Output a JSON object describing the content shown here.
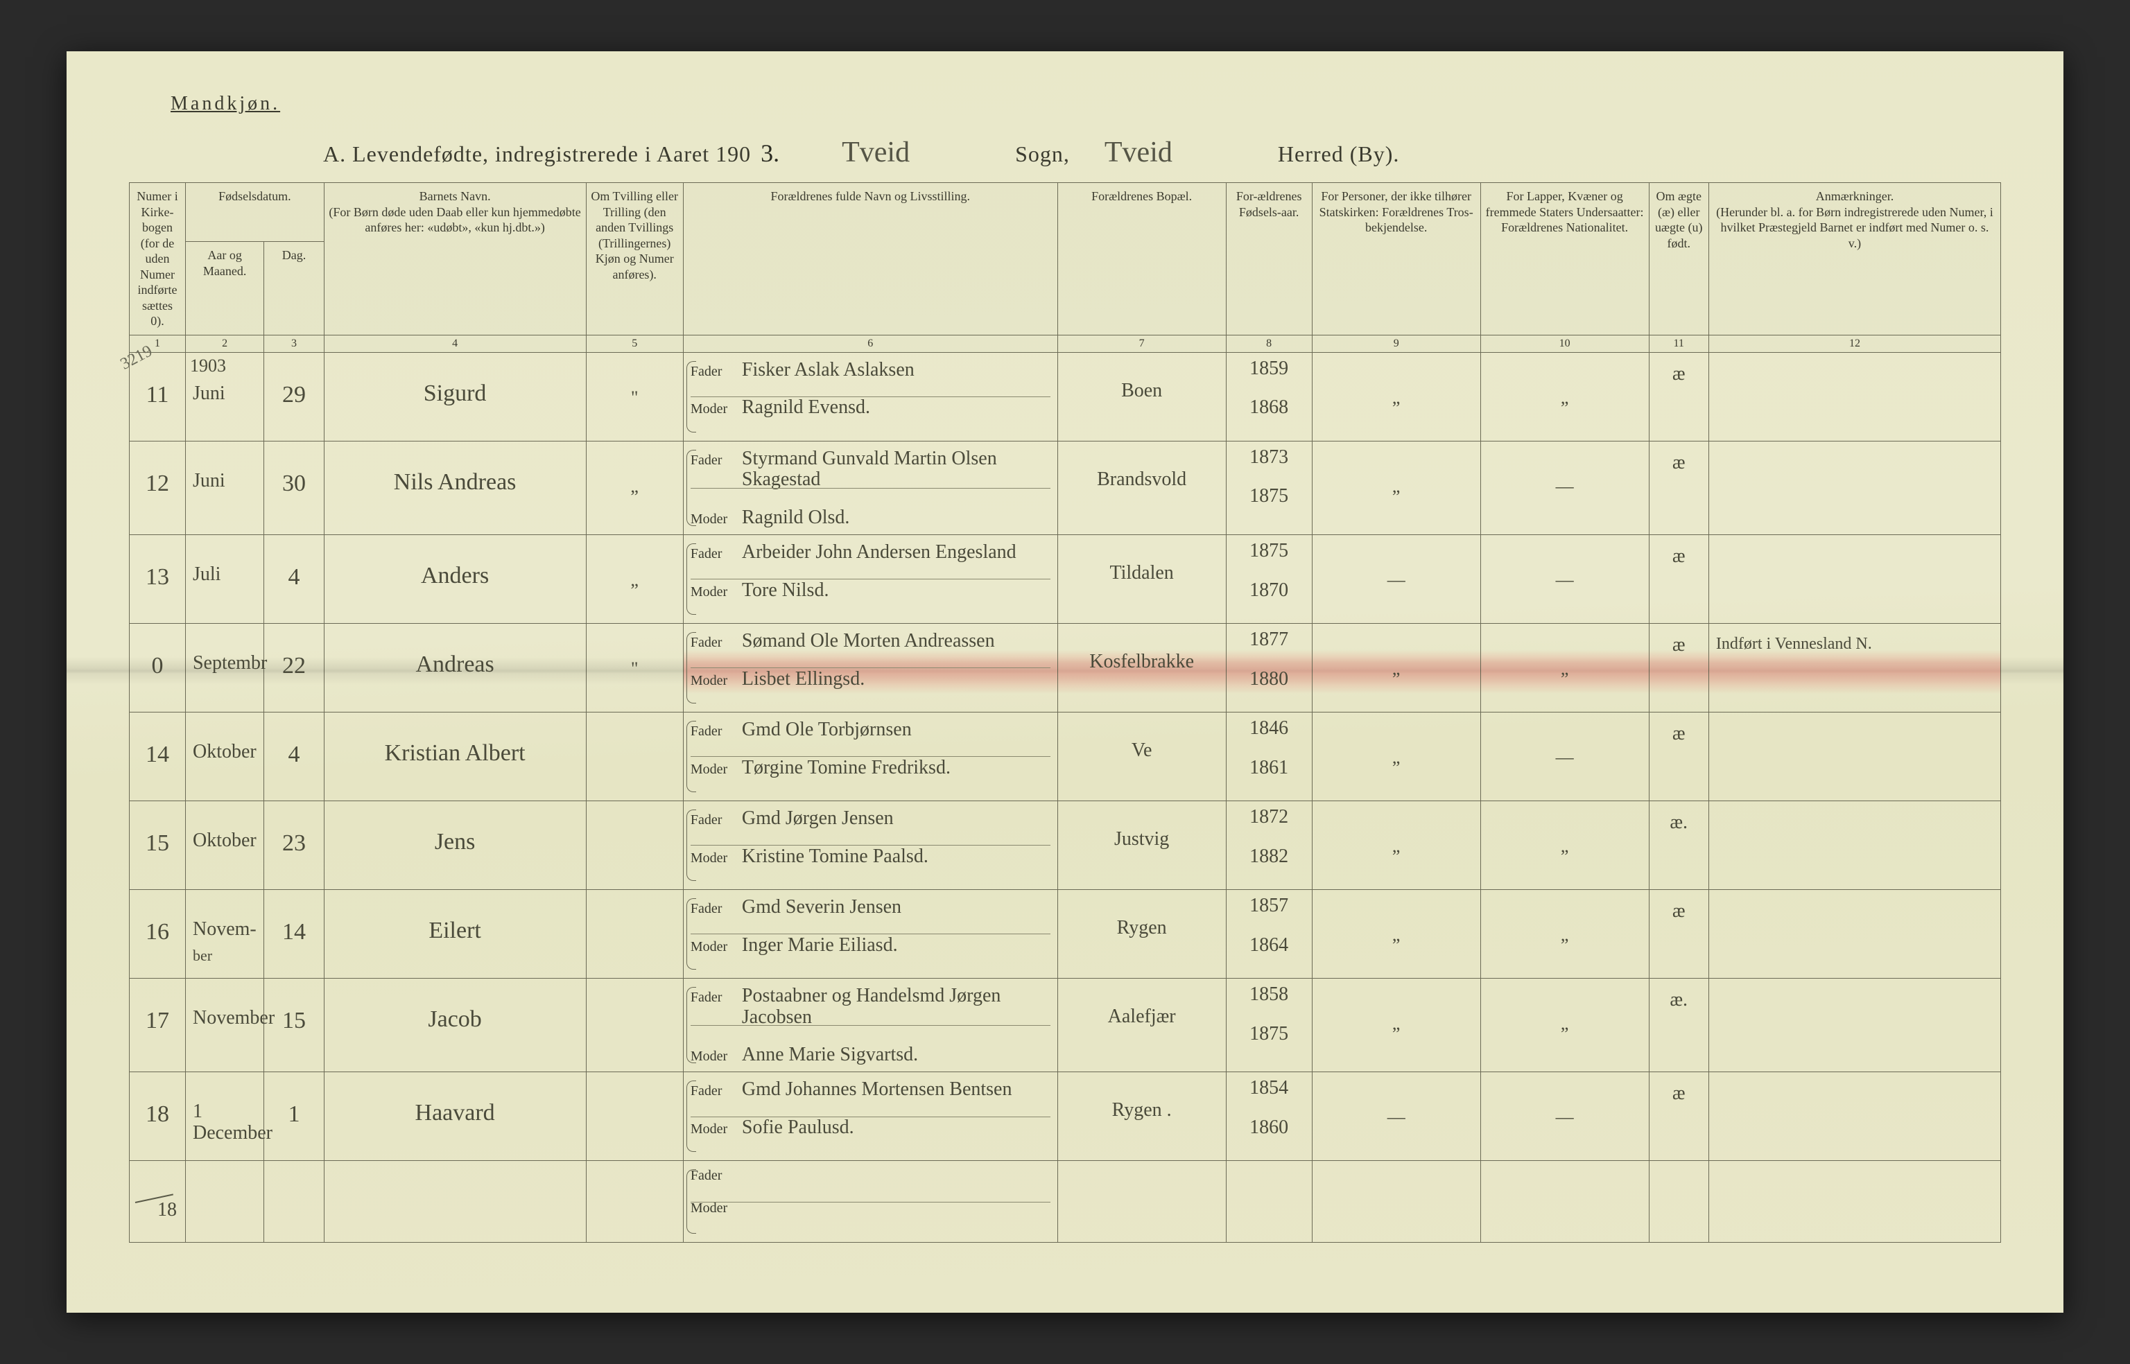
{
  "page": {
    "gender_heading": "Mandkjøn.",
    "title_prefix": "A.  Levendefødte, indregistrerede i Aaret 190",
    "year_suffix": "3.",
    "sogn_value": "Tveid",
    "sogn_label": "Sogn,",
    "herred_value": "Tveid",
    "herred_label": "Herred (By).",
    "margin_note": "3219",
    "year_above_first": "1903",
    "strike_note": "18"
  },
  "headers": {
    "c1": "Numer i Kirke-bogen (for de uden Numer indførte sættes 0).",
    "c2_group": "Fødselsdatum.",
    "c2": "Aar og Maaned.",
    "c3": "Dag.",
    "c4": "Barnets Navn.\n(For Børn døde uden Daab eller kun hjemmedøbte anføres her: «udøbt», «kun hj.dbt.»)",
    "c5": "Om Tvilling eller Trilling (den anden Tvillings (Trillingernes) Kjøn og Numer anføres).",
    "c6": "Forældrenes fulde Navn og Livsstilling.",
    "c7": "Forældrenes Bopæl.",
    "c8": "For-ældrenes Fødsels-aar.",
    "c9": "For Personer, der ikke tilhører Statskirken: Forældrenes Tros-bekjendelse.",
    "c10": "For Lapper, Kvæner og fremmede Staters Undersaatter: Forældrenes Nationalitet.",
    "c11": "Om ægte (æ) eller uægte (u) født.",
    "c12": "Anmærkninger.\n(Herunder bl. a. for Børn indregistrerede uden Numer, i hvilket Præstegjeld Barnet er indført med Numer o. s. v.)",
    "father": "Fader",
    "mother": "Moder"
  },
  "colnums": [
    "1",
    "2",
    "3",
    "4",
    "5",
    "6",
    "7",
    "8",
    "9",
    "10",
    "11",
    "12"
  ],
  "rows": [
    {
      "num": "11",
      "month": "Juni",
      "day": "29",
      "child": "Sigurd",
      "twin": "\"",
      "father": "Fisker Aslak Aslaksen",
      "mother": "Ragnild Evensd.",
      "residence": "Boen",
      "y1": "1859",
      "y2": "1868",
      "c9": "„",
      "c10": "„",
      "leg": "æ",
      "remarks": ""
    },
    {
      "num": "12",
      "month": "Juni",
      "day": "30",
      "child": "Nils Andreas",
      "twin": "„",
      "father": "Styrmand Gunvald Martin Olsen Skagestad",
      "mother": "Ragnild Olsd.",
      "residence": "Brandsvold",
      "y1": "1873",
      "y2": "1875",
      "c9": "„",
      "c10": "—",
      "leg": "æ",
      "remarks": ""
    },
    {
      "num": "13",
      "month": "Juli",
      "day": "4",
      "child": "Anders",
      "twin": "„",
      "father": "Arbeider John Andersen Engesland",
      "mother": "Tore Nilsd.",
      "residence": "Tildalen",
      "y1": "1875",
      "y2": "1870",
      "c9": "—",
      "c10": "—",
      "leg": "æ",
      "remarks": ""
    },
    {
      "num": "0",
      "month": "Septembr",
      "day": "22",
      "child": "Andreas",
      "twin": "\"",
      "father": "Sømand Ole Morten Andreassen",
      "mother": "Lisbet Ellingsd.",
      "residence": "Kosfelbrakke",
      "y1": "1877",
      "y2": "1880",
      "c9": "„",
      "c10": "„",
      "leg": "æ",
      "remarks": "Indført i Vennesland N.",
      "highlight": true
    },
    {
      "num": "14",
      "month": "Oktober",
      "day": "4",
      "child": "Kristian Albert",
      "twin": "",
      "father": "Gmd Ole Torbjørnsen",
      "mother": "Tørgine Tomine Fredriksd.",
      "residence": "Ve",
      "y1": "1846",
      "y2": "1861",
      "c9": "„",
      "c10": "—",
      "leg": "æ",
      "remarks": ""
    },
    {
      "num": "15",
      "month": "Oktober",
      "day": "23",
      "child": "Jens",
      "twin": "",
      "father": "Gmd Jørgen Jensen",
      "mother": "Kristine Tomine Paalsd.",
      "residence": "Justvig",
      "y1": "1872",
      "y2": "1882",
      "c9": "„",
      "c10": "„",
      "leg": "æ.",
      "remarks": ""
    },
    {
      "num": "16",
      "month": "Novem-",
      "month2": "ber",
      "day": "14",
      "child": "Eilert",
      "twin": "",
      "father": "Gmd Severin Jensen",
      "mother": "Inger Marie Eiliasd.",
      "residence": "Rygen",
      "y1": "1857",
      "y2": "1864",
      "c9": "„",
      "c10": "„",
      "leg": "æ",
      "remarks": ""
    },
    {
      "num": "17",
      "month": "November",
      "day": "15",
      "child": "Jacob",
      "twin": "",
      "father": "Postaabner og Handelsmd Jørgen Jacobsen",
      "mother": "Anne Marie Sigvartsd.",
      "residence": "Aalefjær",
      "y1": "1858",
      "y2": "1875",
      "c9": "„",
      "c10": "„",
      "leg": "æ.",
      "remarks": ""
    },
    {
      "num": "18",
      "month": "1 December",
      "day": "1",
      "child": "Haavard",
      "twin": "",
      "father": "Gmd Johannes Mortensen Bentsen",
      "mother": "Sofie Paulusd.",
      "residence": "Rygen .",
      "y1": "1854",
      "y2": "1860",
      "c9": "—",
      "c10": "—",
      "leg": "æ",
      "remarks": ""
    },
    {
      "num": "",
      "month": "",
      "day": "",
      "child": "",
      "twin": "",
      "father": "",
      "mother": "",
      "residence": "",
      "y1": "",
      "y2": "",
      "c9": "",
      "c10": "",
      "leg": "",
      "remarks": "",
      "empty": true
    }
  ],
  "style": {
    "paper_bg": "#e9e8c9",
    "ink": "#3b3b2f",
    "hand_ink": "#4a4a3a",
    "rule": "#6b6a55",
    "highlight": "#e6786e"
  }
}
